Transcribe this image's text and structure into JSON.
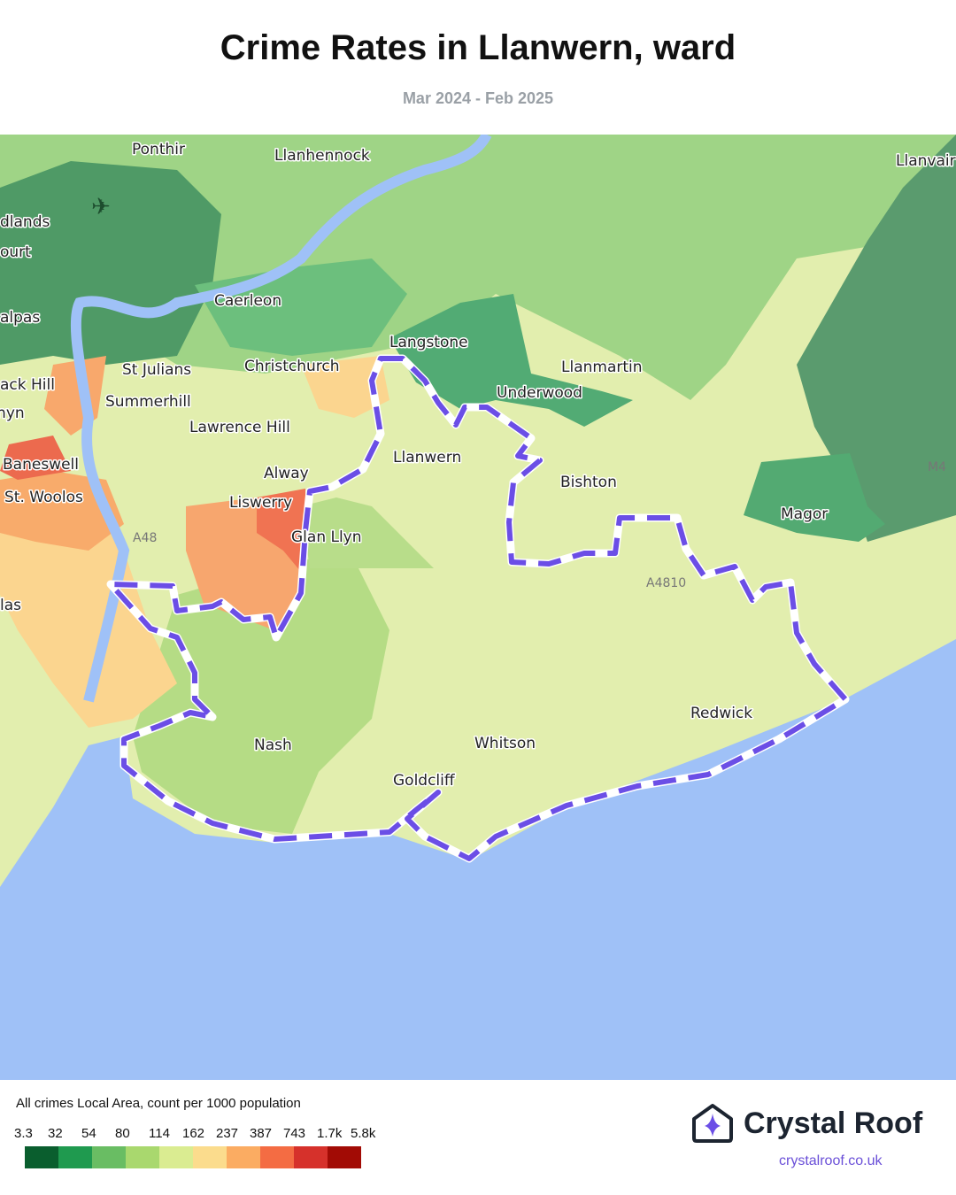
{
  "header": {
    "title": "Crime Rates in Llanwern, ward",
    "subtitle": "Mar 2024 - Feb 2025"
  },
  "map": {
    "places": [
      "Ponthir",
      "Llanhennock",
      "Llanvair",
      "dlands",
      "ourt",
      "Caerleon",
      "alpas",
      "Langstone",
      "St Julians",
      "Christchurch",
      "Llanmartin",
      "ack Hill",
      "Summerhill",
      "Underwood",
      "ynyn",
      "Lawrence Hill",
      "Baneswell",
      "Llanwern",
      "Alway",
      "Bishton",
      "St. Woolos",
      "Liswerry",
      "Magor",
      "Glan Llyn",
      "las",
      "Redwick",
      "Whitson",
      "Nash",
      "Goldcliff"
    ],
    "roads": [
      "M4",
      "A48",
      "A4810"
    ],
    "boundary_color": "#6b4ee6",
    "water_color": "#9fc1f7",
    "icons": [
      "airport-icon"
    ]
  },
  "legend": {
    "title": "All crimes Local Area, count per 1000 population",
    "ticks": [
      "3.3",
      "32",
      "54",
      "80",
      "114",
      "162",
      "237",
      "387",
      "743",
      "1.7k",
      "5.8k"
    ],
    "colors": [
      "#0a5e2e",
      "#1f9a4f",
      "#69bd63",
      "#a9d86e",
      "#daec91",
      "#fbdc8d",
      "#fbac62",
      "#f46c43",
      "#d6312b",
      "#a20b05"
    ]
  },
  "brand": {
    "name": "Crystal Roof",
    "url": "crystalroof.co.uk",
    "accent": "#6b4ee6"
  }
}
